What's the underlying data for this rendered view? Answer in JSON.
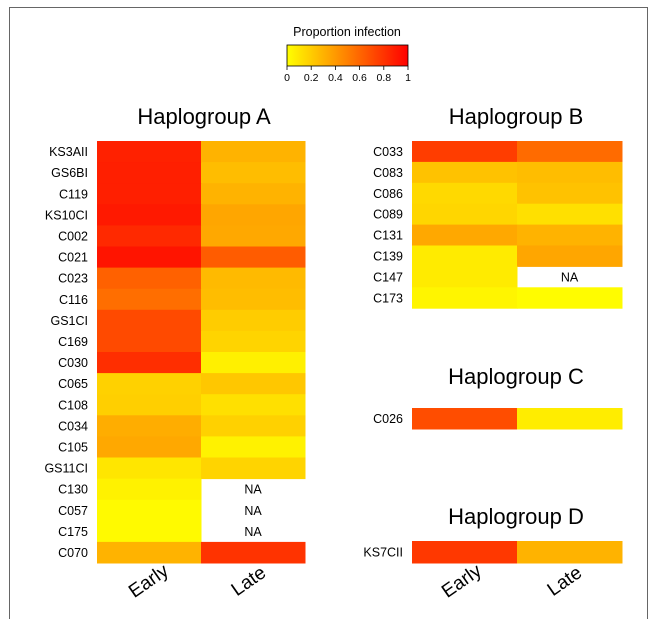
{
  "chart_data": {
    "type": "heatmap",
    "legend": {
      "title": "Proportion infection",
      "ticks": [
        "0",
        "0.2",
        "0.4",
        "0.6",
        "0.8",
        "1"
      ],
      "range": [
        0,
        1
      ],
      "colors": [
        "#FFFF00",
        "#FF0000"
      ],
      "placement": "top-center"
    },
    "columns": [
      "Early",
      "Late"
    ],
    "na_label": "NA",
    "panels": [
      {
        "title": "Haplogroup A",
        "rows": [
          {
            "label": "KS3AII",
            "values": [
              0.87,
              0.3
            ]
          },
          {
            "label": "GS6BI",
            "values": [
              0.88,
              0.26
            ]
          },
          {
            "label": "C119",
            "values": [
              0.88,
              0.3
            ]
          },
          {
            "label": "KS10CI",
            "values": [
              0.9,
              0.35
            ]
          },
          {
            "label": "C002",
            "values": [
              0.84,
              0.34
            ]
          },
          {
            "label": "C021",
            "values": [
              0.92,
              0.64
            ]
          },
          {
            "label": "C023",
            "values": [
              0.62,
              0.27
            ]
          },
          {
            "label": "C116",
            "values": [
              0.57,
              0.26
            ]
          },
          {
            "label": "GS1CI",
            "values": [
              0.71,
              0.2
            ]
          },
          {
            "label": "C169",
            "values": [
              0.71,
              0.17
            ]
          },
          {
            "label": "C030",
            "values": [
              0.82,
              0.06
            ]
          },
          {
            "label": "C065",
            "values": [
              0.18,
              0.22
            ]
          },
          {
            "label": "C108",
            "values": [
              0.19,
              0.12
            ]
          },
          {
            "label": "C034",
            "values": [
              0.32,
              0.18
            ]
          },
          {
            "label": "C105",
            "values": [
              0.34,
              0.05
            ]
          },
          {
            "label": "GS11CI",
            "values": [
              0.1,
              0.17
            ]
          },
          {
            "label": "C130",
            "values": [
              0.05,
              null
            ]
          },
          {
            "label": "C057",
            "values": [
              0.02,
              null
            ]
          },
          {
            "label": "C175",
            "values": [
              0.02,
              null
            ]
          },
          {
            "label": "C070",
            "values": [
              0.3,
              0.8
            ]
          }
        ]
      },
      {
        "title": "Haplogroup B",
        "rows": [
          {
            "label": "C033",
            "values": [
              0.76,
              0.58
            ]
          },
          {
            "label": "C083",
            "values": [
              0.24,
              0.26
            ]
          },
          {
            "label": "C086",
            "values": [
              0.15,
              0.24
            ]
          },
          {
            "label": "C089",
            "values": [
              0.16,
              0.12
            ]
          },
          {
            "label": "C131",
            "values": [
              0.34,
              0.3
            ]
          },
          {
            "label": "C139",
            "values": [
              0.08,
              0.35
            ]
          },
          {
            "label": "C147",
            "values": [
              0.08,
              null
            ]
          },
          {
            "label": "C173",
            "values": [
              0.04,
              0.01
            ]
          }
        ]
      },
      {
        "title": "Haplogroup C",
        "rows": [
          {
            "label": "C026",
            "values": [
              0.7,
              0.07
            ]
          }
        ]
      },
      {
        "title": "Haplogroup D",
        "rows": [
          {
            "label": "KS7CII",
            "values": [
              0.78,
              0.3
            ]
          }
        ]
      }
    ]
  }
}
